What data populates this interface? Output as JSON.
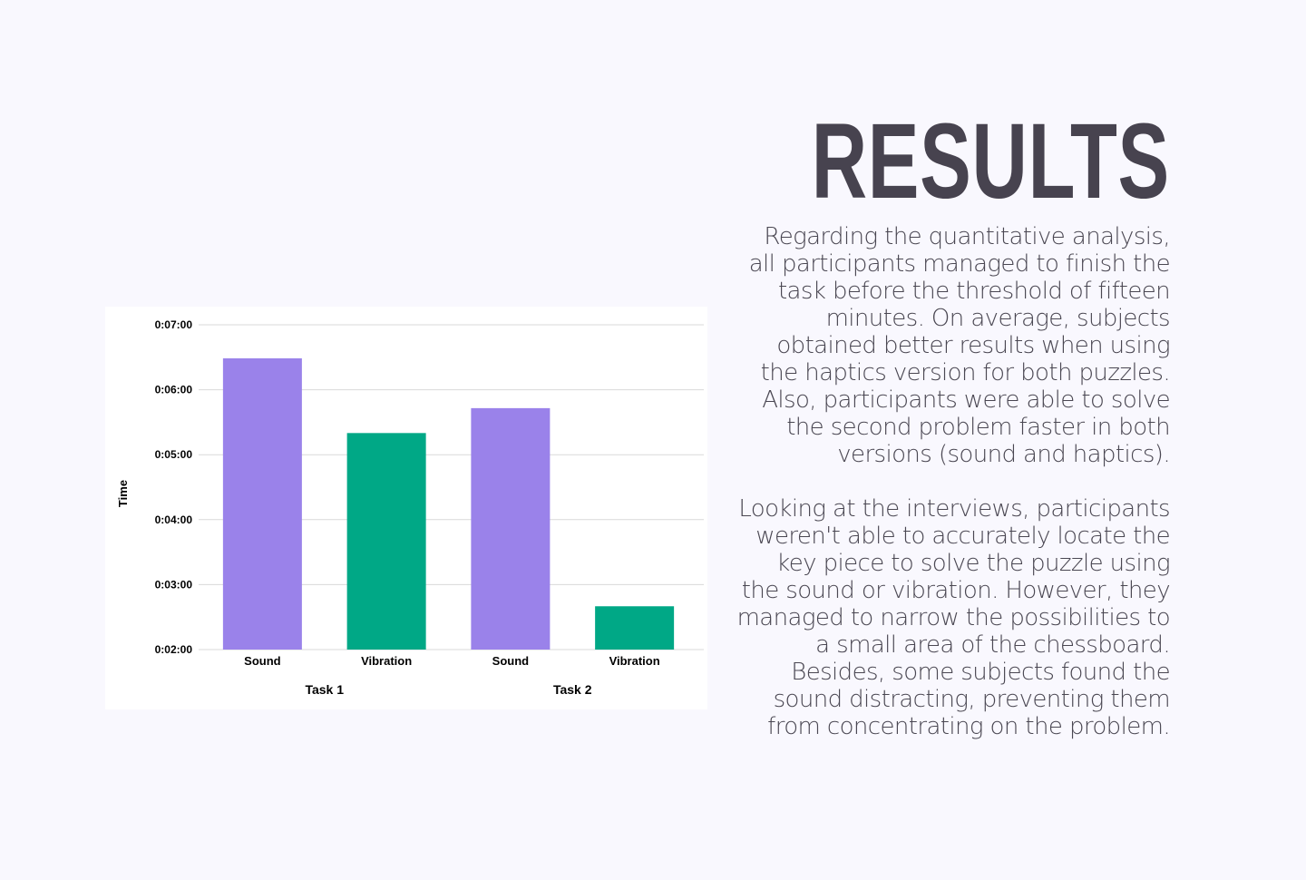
{
  "heading": "RESULTS",
  "paragraphs": [
    "Regarding the quantitative analysis, all participants managed to finish the task before the threshold of fifteen minutes. On average, subjects obtained better results when using the haptics version for both puzzles. Also, participants were able to solve the second problem faster in both versions (sound and haptics).",
    "Looking at the interviews, participants weren't able to accurately locate the key piece to solve the puzzle using the sound or vibration. However, they managed to narrow the possibilities to a small area of the chessboard. Besides, some subjects found the sound distracting, preventing them from concentrating on the problem."
  ],
  "chart_data": {
    "type": "bar",
    "title": "",
    "xlabel": "",
    "ylabel": "Time",
    "groups": [
      "Task 1",
      "Task 2"
    ],
    "categories": [
      "Sound",
      "Vibration",
      "Sound",
      "Vibration"
    ],
    "bars": [
      {
        "group": "Task 1",
        "label": "Sound",
        "seconds": 389,
        "color": "#9a82ea"
      },
      {
        "group": "Task 1",
        "label": "Vibration",
        "seconds": 320,
        "color": "#00a886"
      },
      {
        "group": "Task 2",
        "label": "Sound",
        "seconds": 343,
        "color": "#9a82ea"
      },
      {
        "group": "Task 2",
        "label": "Vibration",
        "seconds": 160,
        "color": "#00a886"
      }
    ],
    "ylim_seconds": [
      120,
      420
    ],
    "yticks": [
      {
        "seconds": 120,
        "label": "0:02:00"
      },
      {
        "seconds": 180,
        "label": "0:03:00"
      },
      {
        "seconds": 240,
        "label": "0:04:00"
      },
      {
        "seconds": 300,
        "label": "0:05:00"
      },
      {
        "seconds": 360,
        "label": "0:06:00"
      },
      {
        "seconds": 420,
        "label": "0:07:00"
      }
    ],
    "grid": true,
    "legend": "none",
    "colors": {
      "sound": "#9a82ea",
      "vibration": "#00a886",
      "gridline": "#d9d9d9"
    }
  }
}
